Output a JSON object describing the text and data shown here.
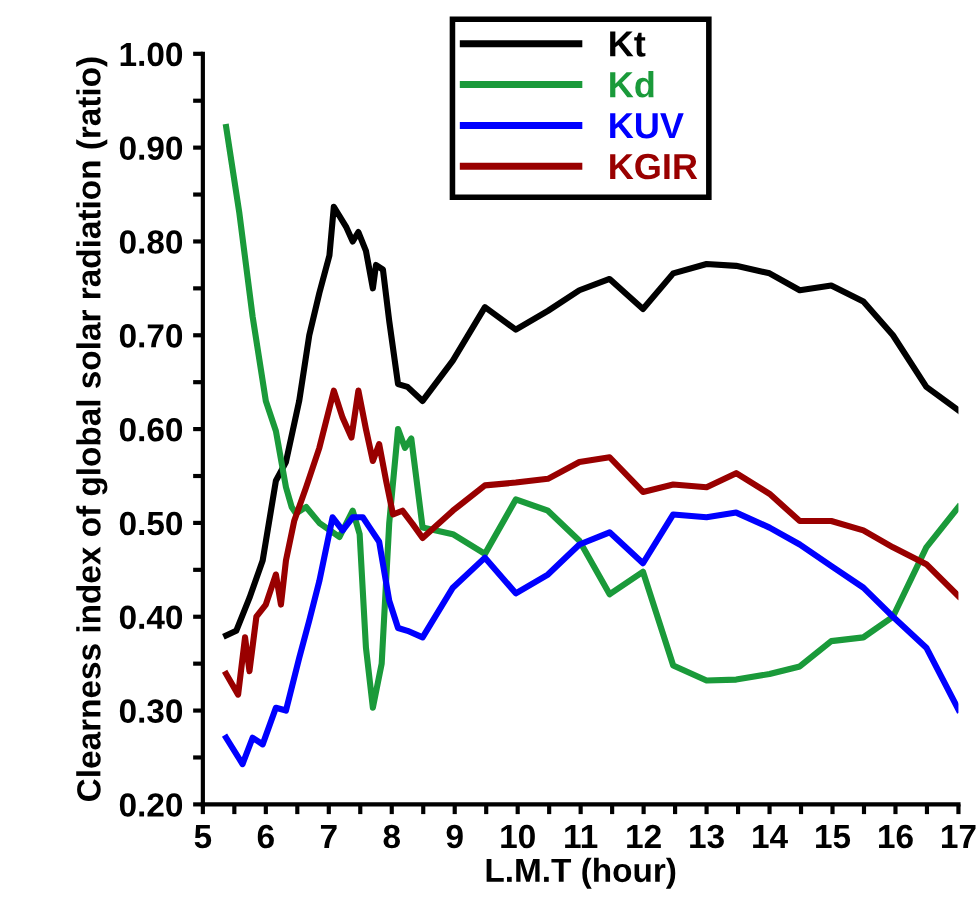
{
  "chart_data": {
    "type": "line",
    "xlabel": "L.M.T (hour)",
    "ylabel": "Clearness index of global solar radiation (ratio)",
    "xlim": [
      5,
      17
    ],
    "ylim": [
      0.2,
      1.0
    ],
    "xticks": [
      5,
      {
        "value": 5.5,
        "label": null
      },
      6,
      {
        "value": 6.5,
        "label": null
      },
      7,
      {
        "value": 7.5,
        "label": null
      },
      8,
      {
        "value": 8.5,
        "label": null
      },
      9,
      {
        "value": 9.5,
        "label": null
      },
      10,
      {
        "value": 10.5,
        "label": null
      },
      11,
      {
        "value": 11.5,
        "label": null
      },
      12,
      {
        "value": 12.5,
        "label": null
      },
      13,
      {
        "value": 13.5,
        "label": null
      },
      14,
      {
        "value": 14.5,
        "label": null
      },
      15,
      {
        "value": 15.5,
        "label": null
      },
      16,
      {
        "value": 16.5,
        "label": null
      },
      17
    ],
    "yticks": [
      {
        "value": 0.2,
        "label": "0.20"
      },
      {
        "value": 0.25,
        "label": null
      },
      {
        "value": 0.3,
        "label": "0.30"
      },
      {
        "value": 0.35,
        "label": null
      },
      {
        "value": 0.4,
        "label": "0.40"
      },
      {
        "value": 0.45,
        "label": null
      },
      {
        "value": 0.5,
        "label": "0.50"
      },
      {
        "value": 0.55,
        "label": null
      },
      {
        "value": 0.6,
        "label": "0.60"
      },
      {
        "value": 0.65,
        "label": null
      },
      {
        "value": 0.7,
        "label": "0.70"
      },
      {
        "value": 0.75,
        "label": null
      },
      {
        "value": 0.8,
        "label": "0.80"
      },
      {
        "value": 0.85,
        "label": null
      },
      {
        "value": 0.9,
        "label": "0.90"
      },
      {
        "value": 0.95,
        "label": null
      },
      {
        "value": 1.0,
        "label": "1.00"
      }
    ],
    "grid": false,
    "legend": "top",
    "marker": "none",
    "line_style": "solid",
    "series": [
      {
        "name": "Kt",
        "color": "#000000",
        "x": [
          5.37,
          5.53,
          5.74,
          5.95,
          6.16,
          6.32,
          6.53,
          6.69,
          6.85,
          7.01,
          7.08,
          7.28,
          7.38,
          7.47,
          7.59,
          7.7,
          7.75,
          7.86,
          7.96,
          8.1,
          8.25,
          8.49,
          8.97,
          9.48,
          9.97,
          10.48,
          10.98,
          11.46,
          11.99,
          12.47,
          13.0,
          13.47,
          14.0,
          14.48,
          14.98,
          15.49,
          15.96,
          16.49,
          17.0
        ],
        "values": [
          0.38,
          0.385,
          0.42,
          0.46,
          0.545,
          0.565,
          0.63,
          0.7,
          0.745,
          0.785,
          0.837,
          0.815,
          0.8,
          0.81,
          0.79,
          0.75,
          0.775,
          0.77,
          0.715,
          0.648,
          0.645,
          0.63,
          0.673,
          0.73,
          0.706,
          0.726,
          0.748,
          0.76,
          0.728,
          0.766,
          0.776,
          0.774,
          0.766,
          0.748,
          0.753,
          0.736,
          0.7,
          0.645,
          0.62
        ]
      },
      {
        "name": "Kd",
        "color": "#1a9a3a",
        "x": [
          5.37,
          5.58,
          5.79,
          6.0,
          6.16,
          6.32,
          6.41,
          6.48,
          6.64,
          6.85,
          7.17,
          7.38,
          7.49,
          7.59,
          7.7,
          7.84,
          7.96,
          8.1,
          8.21,
          8.31,
          8.49,
          8.97,
          9.48,
          9.97,
          10.48,
          10.98,
          11.46,
          11.99,
          12.47,
          13.0,
          13.47,
          14.0,
          14.48,
          14.98,
          15.49,
          15.96,
          16.49,
          17.0
        ],
        "values": [
          0.922,
          0.83,
          0.72,
          0.63,
          0.598,
          0.538,
          0.517,
          0.51,
          0.517,
          0.5,
          0.485,
          0.513,
          0.488,
          0.367,
          0.303,
          0.35,
          0.5,
          0.6,
          0.58,
          0.59,
          0.495,
          0.488,
          0.467,
          0.525,
          0.513,
          0.481,
          0.424,
          0.448,
          0.348,
          0.332,
          0.333,
          0.339,
          0.347,
          0.374,
          0.378,
          0.4,
          0.474,
          0.517
        ]
      },
      {
        "name": "KUV",
        "color": "#0000ff",
        "x": [
          5.37,
          5.63,
          5.79,
          5.95,
          6.16,
          6.32,
          6.53,
          6.69,
          6.85,
          7.06,
          7.22,
          7.38,
          7.54,
          7.65,
          7.8,
          7.96,
          8.1,
          8.25,
          8.49,
          8.97,
          9.48,
          9.97,
          10.48,
          10.98,
          11.46,
          11.99,
          12.47,
          13.0,
          13.47,
          14.0,
          14.48,
          14.98,
          15.49,
          15.96,
          16.49,
          17.0
        ],
        "values": [
          0.271,
          0.243,
          0.271,
          0.264,
          0.303,
          0.3,
          0.356,
          0.396,
          0.438,
          0.506,
          0.492,
          0.506,
          0.506,
          0.495,
          0.48,
          0.417,
          0.388,
          0.385,
          0.378,
          0.431,
          0.463,
          0.425,
          0.445,
          0.477,
          0.49,
          0.457,
          0.509,
          0.506,
          0.511,
          0.495,
          0.477,
          0.454,
          0.431,
          0.4,
          0.367,
          0.301
        ]
      },
      {
        "name": "KGIR",
        "color": "#990000",
        "x": [
          5.37,
          5.56,
          5.67,
          5.74,
          5.85,
          6.0,
          6.16,
          6.24,
          6.32,
          6.45,
          6.64,
          6.85,
          7.08,
          7.22,
          7.36,
          7.47,
          7.59,
          7.7,
          7.8,
          7.91,
          8.02,
          8.17,
          8.33,
          8.49,
          8.97,
          9.48,
          9.97,
          10.48,
          10.98,
          11.46,
          11.99,
          12.47,
          13.0,
          13.47,
          14.0,
          14.48,
          14.98,
          15.49,
          15.96,
          16.49,
          17.0
        ],
        "values": [
          0.339,
          0.317,
          0.378,
          0.342,
          0.4,
          0.413,
          0.445,
          0.413,
          0.46,
          0.502,
          0.538,
          0.58,
          0.641,
          0.612,
          0.591,
          0.641,
          0.6,
          0.566,
          0.584,
          0.545,
          0.509,
          0.513,
          0.499,
          0.484,
          0.513,
          0.54,
          0.543,
          0.547,
          0.565,
          0.57,
          0.533,
          0.541,
          0.538,
          0.553,
          0.531,
          0.502,
          0.502,
          0.492,
          0.474,
          0.456,
          0.422
        ]
      }
    ]
  }
}
